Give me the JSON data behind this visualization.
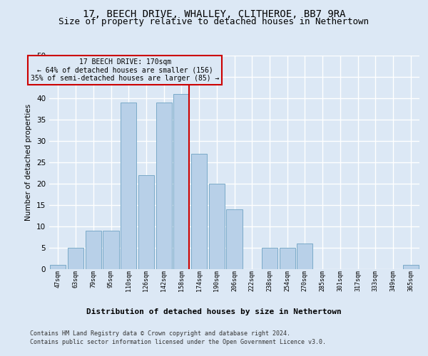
{
  "title": "17, BEECH DRIVE, WHALLEY, CLITHEROE, BB7 9RA",
  "subtitle": "Size of property relative to detached houses in Nethertown",
  "xlabel": "Distribution of detached houses by size in Nethertown",
  "ylabel": "Number of detached properties",
  "footer_line1": "Contains HM Land Registry data © Crown copyright and database right 2024.",
  "footer_line2": "Contains public sector information licensed under the Open Government Licence v3.0.",
  "categories": [
    "47sqm",
    "63sqm",
    "79sqm",
    "95sqm",
    "110sqm",
    "126sqm",
    "142sqm",
    "158sqm",
    "174sqm",
    "190sqm",
    "206sqm",
    "222sqm",
    "238sqm",
    "254sqm",
    "270sqm",
    "285sqm",
    "301sqm",
    "317sqm",
    "333sqm",
    "349sqm",
    "365sqm"
  ],
  "values": [
    1,
    5,
    9,
    9,
    39,
    22,
    39,
    41,
    27,
    20,
    14,
    0,
    5,
    5,
    6,
    0,
    0,
    0,
    0,
    0,
    1
  ],
  "bar_color": "#b8d0e8",
  "bar_edge_color": "#7aaac8",
  "property_line_x": 8,
  "property_label": "17 BEECH DRIVE: 170sqm",
  "annotation_line1": "← 64% of detached houses are smaller (156)",
  "annotation_line2": "35% of semi-detached houses are larger (85) →",
  "ylim": [
    0,
    50
  ],
  "yticks": [
    0,
    5,
    10,
    15,
    20,
    25,
    30,
    35,
    40,
    45,
    50
  ],
  "bg_color": "#dce8f5",
  "axes_bg_color": "#dce8f5",
  "grid_color": "#ffffff",
  "title_fontsize": 10,
  "subtitle_fontsize": 9,
  "annotation_box_color": "#cc0000",
  "vline_color": "#cc0000"
}
